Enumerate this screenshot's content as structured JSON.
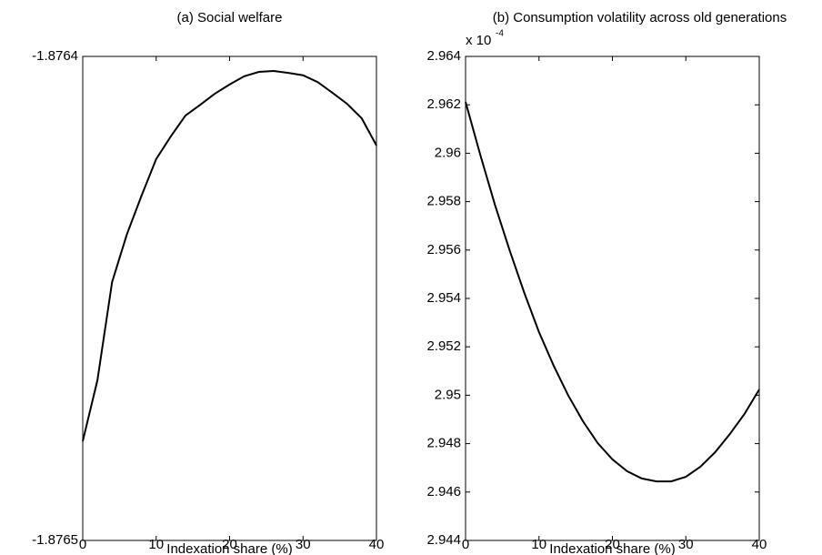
{
  "chart_data": [
    {
      "type": "line",
      "title": "(a) Social welfare",
      "x_label": "Indexation share (%)",
      "x": [
        0,
        2,
        4,
        6,
        8,
        10,
        12,
        14,
        16,
        18,
        20,
        22,
        24,
        26,
        28,
        30,
        32,
        34,
        36,
        38,
        40
      ],
      "series": [
        {
          "color": "#000000",
          "values": [
            -1.8764795,
            -1.8764669,
            -1.8764466,
            -1.8764368,
            -1.8764288,
            -1.8764212,
            -1.8764165,
            -1.8764122,
            -1.87641,
            -1.8764077,
            -1.8764058,
            -1.8764041,
            -1.8764032,
            -1.876403,
            -1.8764034,
            -1.8764039,
            -1.8764053,
            -1.8764075,
            -1.8764098,
            -1.8764128,
            -1.8764184
          ]
        }
      ],
      "xlim": [
        0,
        40
      ],
      "xticks": [
        0,
        10,
        20,
        30,
        40
      ],
      "ylim": [
        -1.8765,
        -1.8764
      ],
      "yticks": [
        -1.8765,
        -1.8764
      ],
      "grid": false
    },
    {
      "type": "line",
      "title": "(b) Consumption volatility across old generations",
      "x_label": "Indexation share (%)",
      "axis_multiplier": {
        "base": "x 10",
        "exponent": "-4"
      },
      "x": [
        0,
        2,
        4,
        6,
        8,
        10,
        12,
        14,
        16,
        18,
        20,
        22,
        24,
        26,
        28,
        30,
        32,
        34,
        36,
        38,
        40
      ],
      "series": [
        {
          "color": "#000000",
          "values": [
            2.96212,
            2.95994,
            2.95787,
            2.95599,
            2.95423,
            2.95261,
            2.95122,
            2.94998,
            2.94892,
            2.94802,
            2.94735,
            2.94686,
            2.94656,
            2.94644,
            2.94644,
            2.94663,
            2.94705,
            2.94765,
            2.9484,
            2.94923,
            2.95024
          ]
        }
      ],
      "xlim": [
        0,
        40
      ],
      "xticks": [
        0,
        10,
        20,
        30,
        40
      ],
      "ylim": [
        2.944,
        2.964
      ],
      "yticks": [
        2.944,
        2.946,
        2.948,
        2.95,
        2.952,
        2.954,
        2.956,
        2.958,
        2.96,
        2.962,
        2.964
      ],
      "grid": false
    }
  ]
}
